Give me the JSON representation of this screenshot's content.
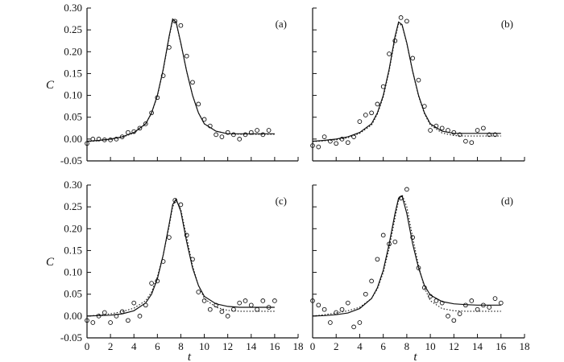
{
  "chart_data": [
    {
      "type": "scatter",
      "panel_label": "(a)",
      "xlabel": "",
      "ylabel": "C",
      "xlim": [
        0,
        18
      ],
      "ylim": [
        -0.05,
        0.3
      ],
      "xticks": [
        "",
        "",
        "",
        "",
        "",
        "",
        "",
        "",
        "",
        ""
      ],
      "yticks": [
        "-0.05",
        "0.00",
        "0.05",
        "0.10",
        "0.15",
        "0.20",
        "0.25",
        "0.30"
      ],
      "observed": {
        "x": [
          0.0,
          0.5,
          1.0,
          1.5,
          2.0,
          2.5,
          3.0,
          3.5,
          4.0,
          4.5,
          5.0,
          5.5,
          6.0,
          6.5,
          7.0,
          7.5,
          8.0,
          8.5,
          9.0,
          9.5,
          10.0,
          10.5,
          11.0,
          11.5,
          12.0,
          12.5,
          13.0,
          13.5,
          14.0,
          14.5,
          15.0,
          15.5
        ],
        "y": [
          -0.01,
          0.0,
          0.0,
          -0.002,
          -0.002,
          0.0,
          0.005,
          0.015,
          0.017,
          0.025,
          0.035,
          0.06,
          0.095,
          0.145,
          0.21,
          0.27,
          0.26,
          0.19,
          0.13,
          0.08,
          0.045,
          0.03,
          0.01,
          0.005,
          0.015,
          0.01,
          0.0,
          0.01,
          0.015,
          0.02,
          0.01,
          0.02
        ]
      },
      "fit_solid": {
        "x": [
          0,
          1,
          2,
          3,
          4,
          5,
          5.5,
          6,
          6.5,
          7,
          7.3,
          7.6,
          8,
          8.5,
          9,
          9.5,
          10,
          11,
          12,
          13,
          14,
          15,
          16
        ],
        "y": [
          -0.005,
          -0.003,
          0.0,
          0.005,
          0.015,
          0.035,
          0.06,
          0.1,
          0.16,
          0.235,
          0.275,
          0.268,
          0.22,
          0.155,
          0.1,
          0.06,
          0.035,
          0.018,
          0.012,
          0.012,
          0.012,
          0.012,
          0.012
        ]
      },
      "fit_dotted": {
        "x": [
          0,
          1,
          2,
          3,
          4,
          5,
          5.5,
          6,
          6.5,
          7,
          7.3,
          7.6,
          8,
          8.5,
          9,
          9.5,
          10,
          11,
          12,
          13,
          14,
          15,
          16
        ],
        "y": [
          -0.006,
          -0.004,
          -0.001,
          0.004,
          0.014,
          0.034,
          0.059,
          0.098,
          0.158,
          0.232,
          0.272,
          0.266,
          0.219,
          0.155,
          0.1,
          0.06,
          0.035,
          0.018,
          0.012,
          0.011,
          0.011,
          0.011,
          0.011
        ]
      }
    },
    {
      "type": "scatter",
      "panel_label": "(b)",
      "xlabel": "",
      "ylabel": "",
      "xlim": [
        0,
        18
      ],
      "ylim": [
        -0.05,
        0.3
      ],
      "xticks": [
        "",
        "",
        "",
        "",
        "",
        "",
        "",
        "",
        "",
        ""
      ],
      "yticks": [
        "",
        "",
        "",
        "",
        "",
        "",
        "",
        ""
      ],
      "observed": {
        "x": [
          0.0,
          0.5,
          1.0,
          1.5,
          2.0,
          2.5,
          3.0,
          3.5,
          4.0,
          4.5,
          5.0,
          5.5,
          6.0,
          6.5,
          7.0,
          7.5,
          8.0,
          8.5,
          9.0,
          9.5,
          10.0,
          10.5,
          11.0,
          11.5,
          12.0,
          12.5,
          13.0,
          13.5,
          14.0,
          14.5,
          15.0,
          15.5
        ],
        "y": [
          -0.015,
          -0.018,
          0.005,
          -0.005,
          -0.01,
          0.0,
          -0.008,
          0.005,
          0.04,
          0.055,
          0.06,
          0.08,
          0.12,
          0.195,
          0.225,
          0.278,
          0.27,
          0.185,
          0.135,
          0.075,
          0.02,
          0.03,
          0.025,
          0.02,
          0.015,
          0.01,
          -0.005,
          -0.008,
          0.02,
          0.025,
          0.01,
          0.01
        ]
      },
      "fit_solid": {
        "x": [
          0,
          1,
          2,
          3,
          4,
          5,
          5.5,
          6,
          6.5,
          7,
          7.3,
          7.6,
          8,
          8.5,
          9,
          9.5,
          10,
          11,
          12,
          13,
          14,
          15,
          16
        ],
        "y": [
          -0.005,
          -0.003,
          0.0,
          0.005,
          0.015,
          0.035,
          0.06,
          0.1,
          0.16,
          0.235,
          0.268,
          0.262,
          0.22,
          0.155,
          0.1,
          0.06,
          0.035,
          0.018,
          0.013,
          0.013,
          0.013,
          0.013,
          0.013
        ]
      },
      "fit_dotted": {
        "x": [
          0,
          1,
          2,
          3,
          4,
          5,
          5.5,
          6,
          6.5,
          7,
          7.3,
          7.6,
          8,
          8.5,
          9,
          9.5,
          10,
          11,
          12,
          13,
          14,
          15,
          16
        ],
        "y": [
          -0.006,
          -0.004,
          -0.002,
          0.003,
          0.013,
          0.032,
          0.057,
          0.096,
          0.156,
          0.23,
          0.264,
          0.26,
          0.219,
          0.154,
          0.098,
          0.058,
          0.032,
          0.014,
          0.008,
          0.007,
          0.007,
          0.007,
          0.007
        ]
      }
    },
    {
      "type": "scatter",
      "panel_label": "(c)",
      "xlabel": "t",
      "ylabel": "C",
      "xlim": [
        0,
        18
      ],
      "ylim": [
        -0.05,
        0.3
      ],
      "xticks": [
        "0",
        "2",
        "4",
        "6",
        "8",
        "10",
        "12",
        "14",
        "16",
        "18"
      ],
      "yticks": [
        "-0.05",
        "0.00",
        "0.05",
        "0.10",
        "0.15",
        "0.20",
        "0.25",
        "0.30"
      ],
      "observed": {
        "x": [
          0.0,
          0.5,
          1.0,
          1.5,
          2.0,
          2.5,
          3.0,
          3.5,
          4.0,
          4.5,
          5.0,
          5.5,
          6.0,
          6.5,
          7.0,
          7.5,
          8.0,
          8.5,
          9.0,
          9.5,
          10.0,
          10.5,
          11.0,
          11.5,
          12.0,
          12.5,
          13.0,
          13.5,
          14.0,
          14.5,
          15.0,
          15.5,
          16.0
        ],
        "y": [
          -0.01,
          -0.015,
          0.0,
          0.008,
          -0.015,
          0.0,
          0.01,
          -0.01,
          0.03,
          0.0,
          0.025,
          0.075,
          0.08,
          0.125,
          0.18,
          0.265,
          0.255,
          0.185,
          0.13,
          0.055,
          0.035,
          0.015,
          0.025,
          0.01,
          0.0,
          0.015,
          0.03,
          0.035,
          0.025,
          0.015,
          0.035,
          0.02,
          0.035
        ]
      },
      "fit_solid": {
        "x": [
          0,
          1,
          2,
          3,
          4,
          5,
          5.5,
          6,
          6.5,
          7,
          7.3,
          7.6,
          8,
          8.5,
          9,
          9.5,
          10,
          11,
          12,
          13,
          14,
          15,
          16
        ],
        "y": [
          0.0,
          0.001,
          0.002,
          0.005,
          0.012,
          0.03,
          0.05,
          0.085,
          0.14,
          0.21,
          0.255,
          0.268,
          0.24,
          0.17,
          0.11,
          0.07,
          0.045,
          0.028,
          0.022,
          0.02,
          0.02,
          0.02,
          0.02
        ]
      },
      "fit_dotted": {
        "x": [
          0,
          1,
          2,
          3,
          4,
          5,
          5.5,
          6,
          6.5,
          7,
          7.3,
          7.6,
          8,
          8.5,
          9,
          9.5,
          10,
          11,
          12,
          13,
          14,
          15,
          16
        ],
        "y": [
          0.0,
          0.002,
          0.005,
          0.01,
          0.018,
          0.035,
          0.055,
          0.09,
          0.14,
          0.205,
          0.25,
          0.265,
          0.245,
          0.18,
          0.115,
          0.07,
          0.04,
          0.02,
          0.013,
          0.011,
          0.011,
          0.011,
          0.011
        ]
      }
    },
    {
      "type": "scatter",
      "panel_label": "(d)",
      "xlabel": "t",
      "ylabel": "",
      "xlim": [
        0,
        18
      ],
      "ylim": [
        -0.05,
        0.3
      ],
      "xticks": [
        "0",
        "2",
        "4",
        "6",
        "8",
        "10",
        "12",
        "14",
        "16",
        "18"
      ],
      "yticks": [
        "",
        "",
        "",
        "",
        "",
        "",
        "",
        ""
      ],
      "observed": {
        "x": [
          0.0,
          0.5,
          1.0,
          1.5,
          2.0,
          2.5,
          3.0,
          3.5,
          4.0,
          4.5,
          5.0,
          5.5,
          6.0,
          6.5,
          7.0,
          7.5,
          8.0,
          8.5,
          9.0,
          9.5,
          10.0,
          10.5,
          11.0,
          11.5,
          12.0,
          12.5,
          13.0,
          13.5,
          14.0,
          14.5,
          15.0,
          15.5,
          16.0
        ],
        "y": [
          0.035,
          0.025,
          0.015,
          -0.015,
          0.008,
          0.015,
          0.03,
          -0.025,
          -0.015,
          0.05,
          0.08,
          0.13,
          0.185,
          0.165,
          0.17,
          0.27,
          0.29,
          0.18,
          0.11,
          0.065,
          0.045,
          0.035,
          0.03,
          0.0,
          -0.01,
          0.005,
          0.025,
          0.035,
          0.015,
          0.025,
          0.02,
          0.04,
          0.03
        ]
      },
      "fit_solid": {
        "x": [
          0,
          1,
          2,
          3,
          4,
          5,
          5.5,
          6,
          6.5,
          7,
          7.3,
          7.6,
          8,
          8.5,
          9,
          9.5,
          10,
          11,
          12,
          13,
          14,
          15,
          16
        ],
        "y": [
          0.0,
          0.001,
          0.003,
          0.007,
          0.017,
          0.04,
          0.065,
          0.105,
          0.165,
          0.235,
          0.27,
          0.275,
          0.235,
          0.165,
          0.11,
          0.07,
          0.048,
          0.033,
          0.028,
          0.026,
          0.025,
          0.025,
          0.025
        ]
      },
      "fit_dotted": {
        "x": [
          0,
          1,
          2,
          3,
          4,
          5,
          5.5,
          6,
          6.5,
          7,
          7.3,
          7.6,
          8,
          8.5,
          9,
          9.5,
          10,
          11,
          12,
          13,
          14,
          15,
          16
        ],
        "y": [
          0.0,
          0.003,
          0.007,
          0.012,
          0.02,
          0.04,
          0.062,
          0.1,
          0.155,
          0.225,
          0.265,
          0.278,
          0.25,
          0.18,
          0.115,
          0.065,
          0.035,
          0.017,
          0.012,
          0.011,
          0.011,
          0.011,
          0.011
        ]
      }
    }
  ]
}
